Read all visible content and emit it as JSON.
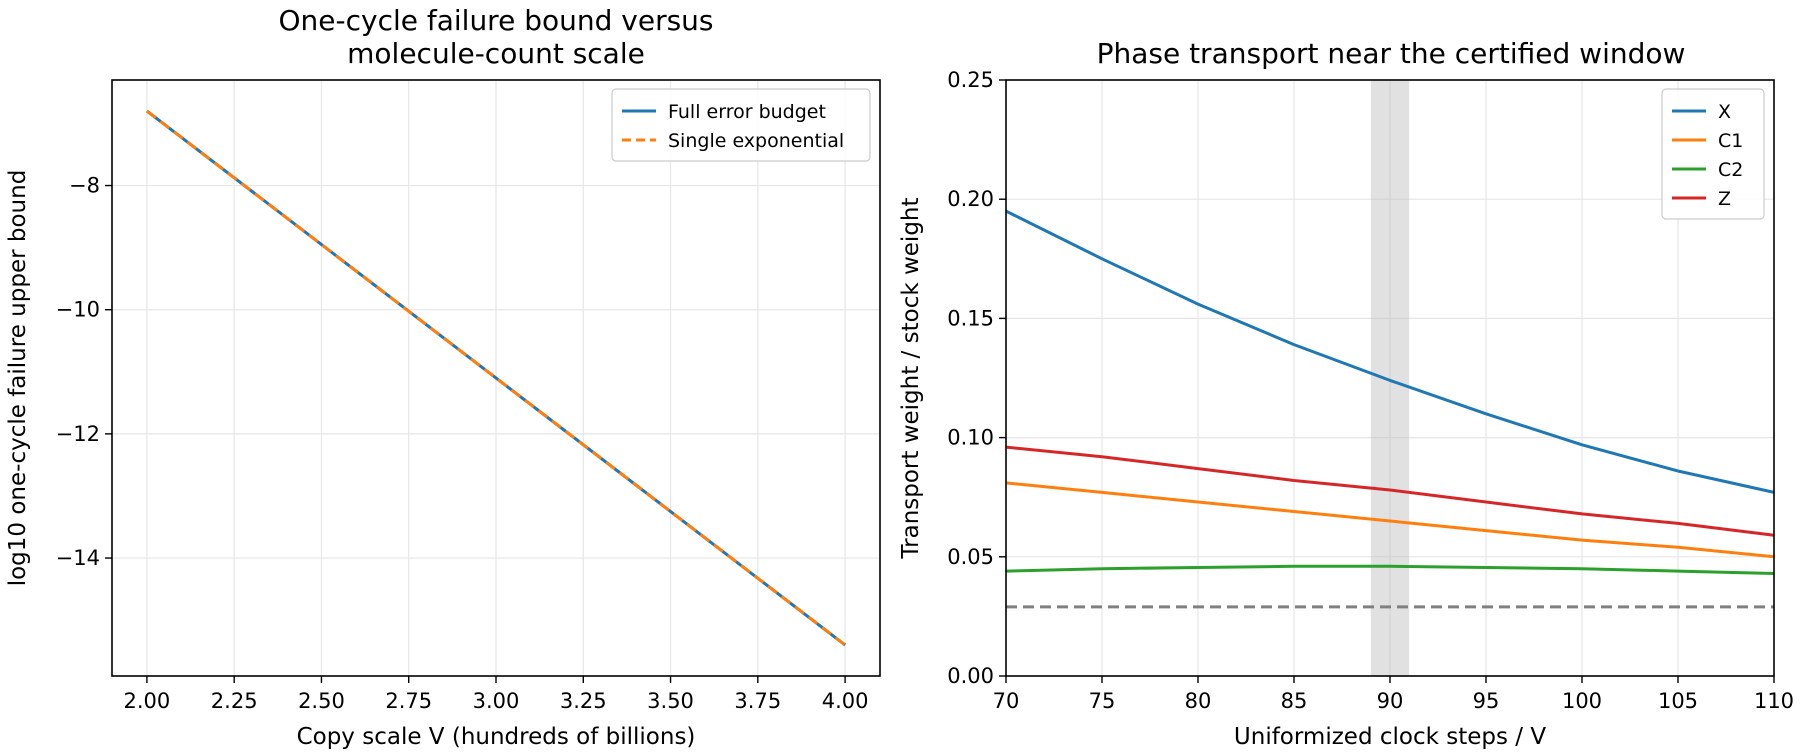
{
  "chart_data": [
    {
      "type": "line",
      "title": "One-cycle failure bound versus",
      "title_line2": "molecule-count scale",
      "xlabel": "Copy scale V (hundreds of billions)",
      "ylabel": "log10 one-cycle failure upper bound",
      "xlim": [
        1.9,
        4.1
      ],
      "ylim": [
        -15.9,
        -6.3
      ],
      "xticks": [
        2.0,
        2.25,
        2.5,
        2.75,
        3.0,
        3.25,
        3.5,
        3.75,
        4.0
      ],
      "xtick_labels": [
        "2.00",
        "2.25",
        "2.50",
        "2.75",
        "3.00",
        "3.25",
        "3.50",
        "3.75",
        "4.00"
      ],
      "yticks": [
        -8,
        -10,
        -12,
        -14
      ],
      "ytick_labels": [
        "−8",
        "−10",
        "−12",
        "−14"
      ],
      "grid": true,
      "legend_position": "upper-right",
      "series": [
        {
          "name": "Full error budget",
          "color": "#1f77b4",
          "style": "solid",
          "x": [
            2.0,
            4.0
          ],
          "y": [
            -6.8,
            -15.4
          ]
        },
        {
          "name": "Single exponential",
          "color": "#ff7f0e",
          "style": "dashed",
          "x": [
            2.0,
            4.0
          ],
          "y": [
            -6.8,
            -15.4
          ]
        }
      ]
    },
    {
      "type": "line",
      "title": "Phase transport near the certified window",
      "xlabel": "Uniformized clock steps / V",
      "ylabel": "Transport weight / stock weight",
      "xlim": [
        70,
        110
      ],
      "ylim": [
        0.0,
        0.25
      ],
      "xticks": [
        70,
        75,
        80,
        85,
        90,
        95,
        100,
        105,
        110
      ],
      "xtick_labels": [
        "70",
        "75",
        "80",
        "85",
        "90",
        "95",
        "100",
        "105",
        "110"
      ],
      "yticks": [
        0.0,
        0.05,
        0.1,
        0.15,
        0.2,
        0.25
      ],
      "ytick_labels": [
        "0.00",
        "0.05",
        "0.10",
        "0.15",
        "0.20",
        "0.25"
      ],
      "grid": true,
      "legend_position": "upper-right",
      "shaded_window": {
        "x": [
          89,
          91
        ],
        "color": "#bdbdbd"
      },
      "reference_line": {
        "y": 0.029,
        "color": "#808080",
        "style": "dashed"
      },
      "series": [
        {
          "name": "X",
          "color": "#1f77b4",
          "x": [
            70,
            75,
            80,
            85,
            90,
            95,
            100,
            105,
            110
          ],
          "y": [
            0.195,
            0.175,
            0.156,
            0.139,
            0.124,
            0.11,
            0.097,
            0.086,
            0.077
          ]
        },
        {
          "name": "C1",
          "color": "#ff7f0e",
          "x": [
            70,
            75,
            80,
            85,
            90,
            95,
            100,
            105,
            110
          ],
          "y": [
            0.081,
            0.077,
            0.073,
            0.069,
            0.065,
            0.061,
            0.057,
            0.054,
            0.05
          ]
        },
        {
          "name": "C2",
          "color": "#2ca02c",
          "x": [
            70,
            75,
            80,
            85,
            90,
            95,
            100,
            105,
            110
          ],
          "y": [
            0.044,
            0.045,
            0.0455,
            0.046,
            0.046,
            0.0455,
            0.045,
            0.044,
            0.043
          ]
        },
        {
          "name": "Z",
          "color": "#d62728",
          "x": [
            70,
            75,
            80,
            85,
            90,
            95,
            100,
            105,
            110
          ],
          "y": [
            0.096,
            0.092,
            0.087,
            0.082,
            0.078,
            0.073,
            0.068,
            0.064,
            0.059
          ]
        }
      ]
    }
  ]
}
